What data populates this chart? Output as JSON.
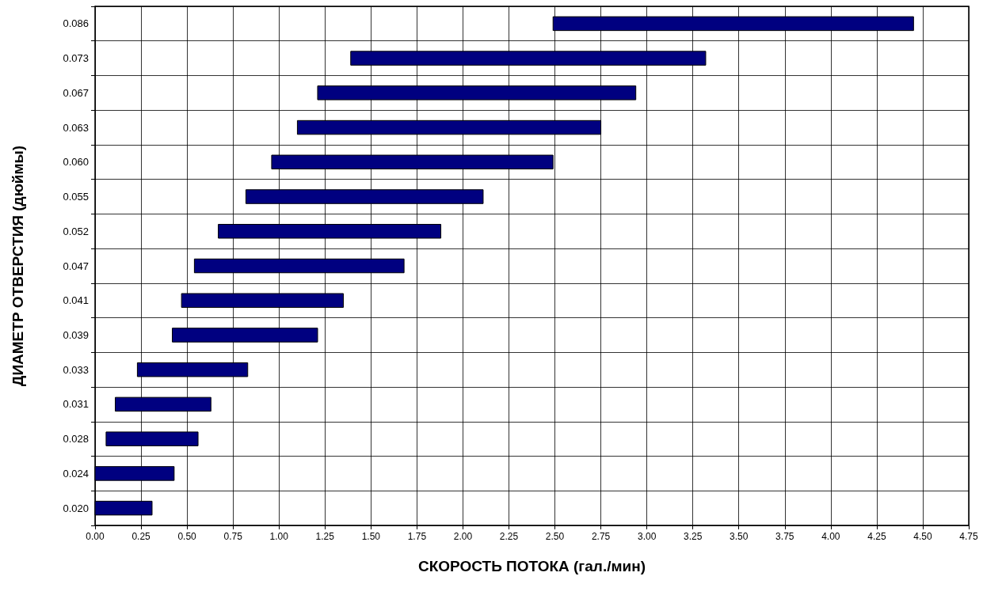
{
  "chart_data": {
    "type": "bar",
    "orientation": "horizontal",
    "xlabel": "СКОРОСТЬ ПОТОКА (гал./мин)",
    "ylabel": "ДИАМЕТР ОТВЕРСТИЯ (дюймы)",
    "categories": [
      "0.086",
      "0.073",
      "0.067",
      "0.063",
      "0.060",
      "0.055",
      "0.052",
      "0.047",
      "0.041",
      "0.039",
      "0.033",
      "0.031",
      "0.028",
      "0.024",
      "0.020"
    ],
    "base": [
      2.49,
      1.39,
      1.21,
      1.1,
      0.96,
      0.82,
      0.67,
      0.54,
      0.47,
      0.42,
      0.23,
      0.11,
      0.06,
      0,
      0
    ],
    "values": [
      1.96,
      1.93,
      1.73,
      1.65,
      1.53,
      1.29,
      1.21,
      1.14,
      0.88,
      0.79,
      0.6,
      0.52,
      0.5,
      0.43,
      0.31
    ],
    "color": "#000080",
    "xlim": [
      0,
      4.75
    ],
    "xticks": [
      {
        "value": 0,
        "label": "0.00"
      },
      0.25,
      {
        "value": 0.5,
        "label": "0.50"
      },
      0.75,
      {
        "value": 1,
        "label": "1.00"
      },
      1.25,
      {
        "value": 1.5,
        "label": "1.50"
      },
      1.75,
      {
        "value": 2,
        "label": "2.00"
      },
      2.25,
      {
        "value": 2.5,
        "label": "2.50"
      },
      2.75,
      {
        "value": 3,
        "label": "3.00"
      },
      3.25,
      {
        "value": 3.5,
        "label": "3.50"
      },
      3.75,
      {
        "value": 4,
        "label": "4.00"
      },
      4.25,
      {
        "value": 4.5,
        "label": "4.50"
      },
      4.75
    ],
    "grid": true
  }
}
